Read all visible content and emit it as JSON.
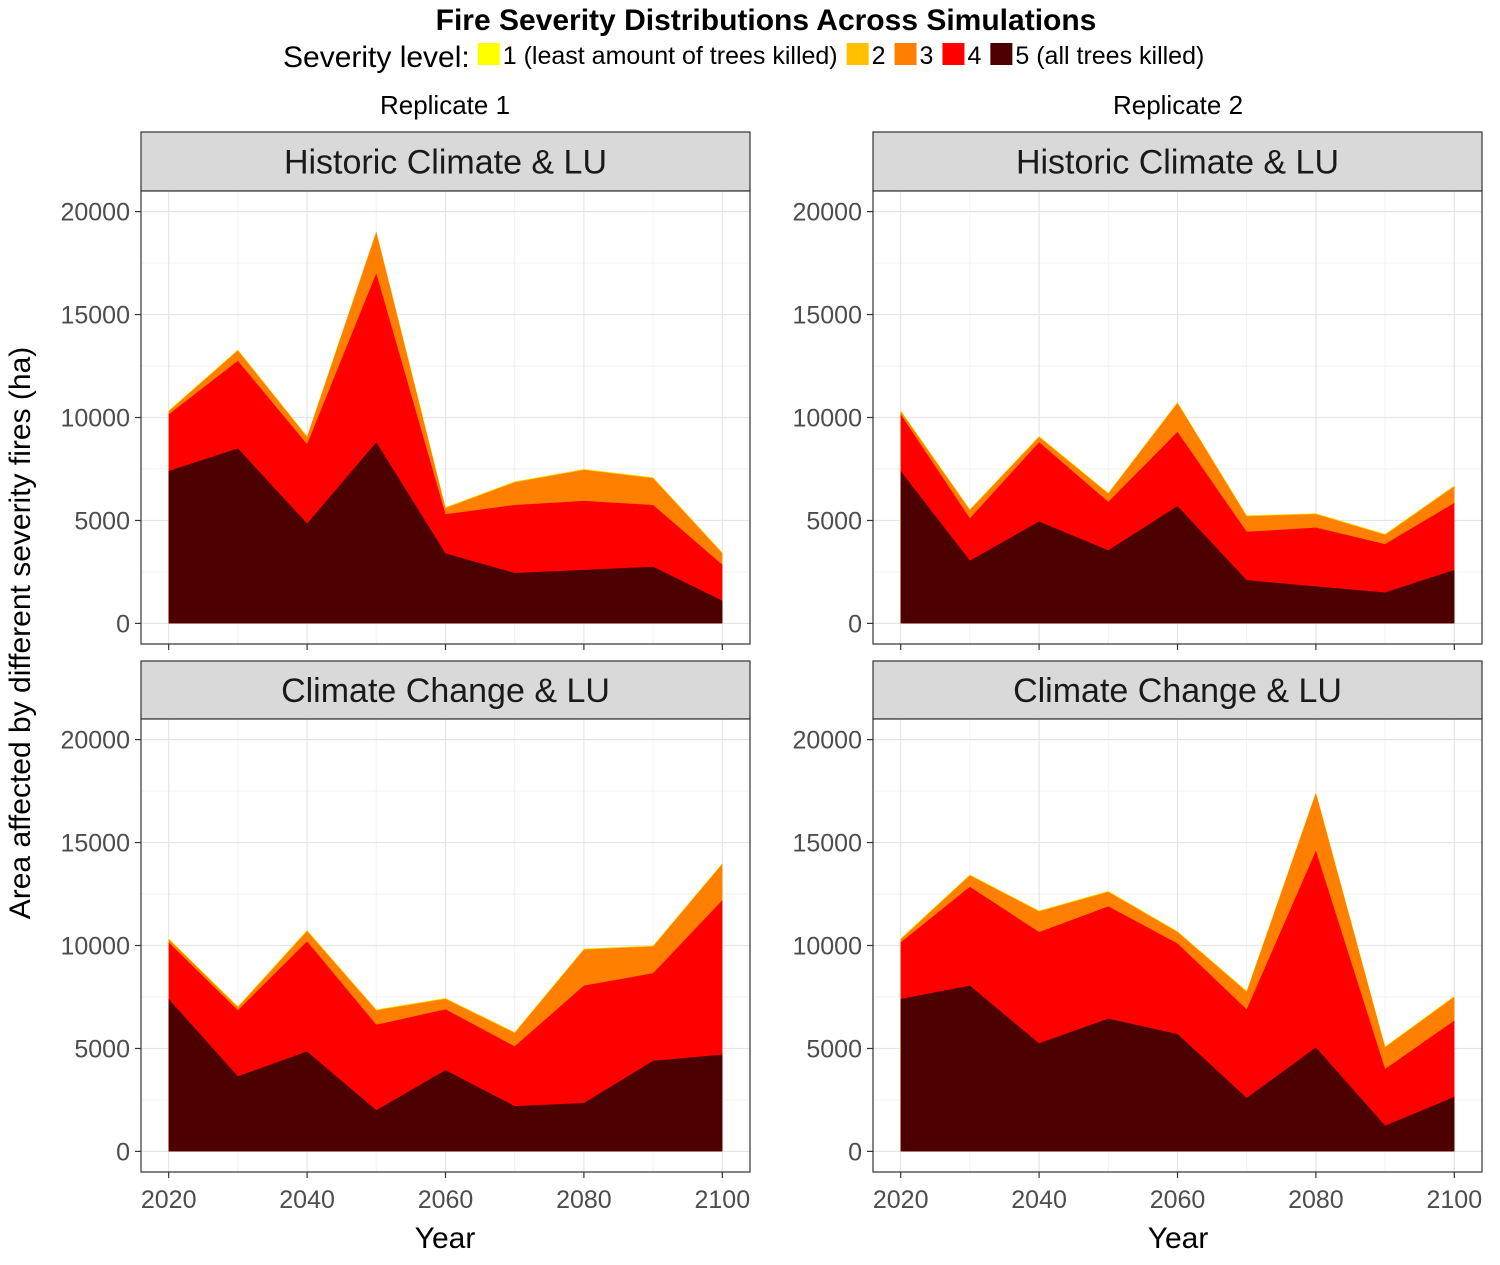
{
  "chart_data": {
    "type": "area",
    "title": "Fire Severity Distributions Across Simulations",
    "legend": {
      "title": "Severity level:",
      "position": "top",
      "entries": [
        {
          "label": "1 (least amount of trees killed)",
          "color": "#FFFF00"
        },
        {
          "label": "2",
          "color": "#FFC000"
        },
        {
          "label": "3",
          "color": "#FF8000"
        },
        {
          "label": "4",
          "color": "#FF0000"
        },
        {
          "label": "5 (all trees killed)",
          "color": "#4D0000"
        }
      ]
    },
    "xlabel": "Year",
    "ylabel": "Area affected by different severity fires (ha)",
    "x_ticks": [
      2020,
      2040,
      2060,
      2080,
      2100
    ],
    "y_ticks": [
      0,
      5000,
      10000,
      15000,
      20000
    ],
    "xlim": [
      2016,
      2104
    ],
    "ylim": [
      -1000,
      21000
    ],
    "grid": true,
    "columns": [
      "Replicate 1",
      "Replicate 2"
    ],
    "panels": [
      {
        "column": "Replicate 1",
        "facet": "Historic Climate & LU",
        "x": [
          2020,
          2030,
          2040,
          2050,
          2060,
          2070,
          2080,
          2090,
          2100
        ],
        "series": [
          {
            "name": "5 (all trees killed)",
            "values": [
              7400,
              8500,
              4850,
              8800,
              3400,
              2450,
              2600,
              2750,
              1100
            ]
          },
          {
            "name": "4",
            "values": [
              2750,
              4250,
              3850,
              8200,
              1900,
              3300,
              3350,
              3000,
              1750
            ]
          },
          {
            "name": "3",
            "values": [
              150,
              500,
              350,
              2000,
              300,
              1100,
              1500,
              1300,
              550
            ]
          },
          {
            "name": "2",
            "values": [
              30,
              30,
              30,
              30,
              30,
              30,
              30,
              30,
              30
            ]
          },
          {
            "name": "1 (least amount of trees killed)",
            "values": [
              20,
              20,
              20,
              20,
              20,
              20,
              20,
              20,
              20
            ]
          }
        ]
      },
      {
        "column": "Replicate 2",
        "facet": "Historic Climate & LU",
        "x": [
          2020,
          2030,
          2040,
          2050,
          2060,
          2070,
          2080,
          2090,
          2100
        ],
        "series": [
          {
            "name": "5 (all trees killed)",
            "values": [
              7400,
              3050,
              4950,
              3550,
              5700,
              2100,
              1800,
              1500,
              2600
            ]
          },
          {
            "name": "4",
            "values": [
              2750,
              2050,
              3850,
              2350,
              3600,
              2350,
              2850,
              2350,
              3250
            ]
          },
          {
            "name": "3",
            "values": [
              150,
              400,
              250,
              400,
              1400,
              750,
              650,
              450,
              800
            ]
          },
          {
            "name": "2",
            "values": [
              30,
              30,
              30,
              30,
              30,
              30,
              30,
              30,
              30
            ]
          },
          {
            "name": "1 (least amount of trees killed)",
            "values": [
              20,
              20,
              20,
              20,
              20,
              20,
              20,
              20,
              20
            ]
          }
        ]
      },
      {
        "column": "Replicate 1",
        "facet": "Climate Change & LU",
        "x": [
          2020,
          2030,
          2040,
          2050,
          2060,
          2070,
          2080,
          2090,
          2100
        ],
        "series": [
          {
            "name": "5 (all trees killed)",
            "values": [
              7400,
              3650,
              4850,
              2000,
              3950,
              2200,
              2350,
              4400,
              4700
            ]
          },
          {
            "name": "4",
            "values": [
              2750,
              3200,
              5350,
              4150,
              2950,
              2900,
              5700,
              4250,
              7500
            ]
          },
          {
            "name": "3",
            "values": [
              150,
              150,
              500,
              700,
              500,
              650,
              1750,
              1300,
              1750
            ]
          },
          {
            "name": "2",
            "values": [
              30,
              30,
              30,
              30,
              30,
              30,
              30,
              30,
              30
            ]
          },
          {
            "name": "1 (least amount of trees killed)",
            "values": [
              20,
              20,
              20,
              20,
              20,
              20,
              20,
              20,
              20
            ]
          }
        ]
      },
      {
        "column": "Replicate 2",
        "facet": "Climate Change & LU",
        "x": [
          2020,
          2030,
          2040,
          2050,
          2060,
          2070,
          2080,
          2090,
          2100
        ],
        "series": [
          {
            "name": "5 (all trees killed)",
            "values": [
              7400,
              8050,
              5250,
              6450,
              5700,
              2600,
              5050,
              1250,
              2650
            ]
          },
          {
            "name": "4",
            "values": [
              2750,
              4800,
              5400,
              5450,
              4400,
              4300,
              9550,
              2750,
              3700
            ]
          },
          {
            "name": "3",
            "values": [
              150,
              550,
              1000,
              700,
              550,
              850,
              2800,
              1050,
              1150
            ]
          },
          {
            "name": "2",
            "values": [
              30,
              30,
              30,
              30,
              30,
              30,
              30,
              30,
              30
            ]
          },
          {
            "name": "1 (least amount of trees killed)",
            "values": [
              20,
              20,
              20,
              20,
              20,
              20,
              20,
              20,
              20
            ]
          }
        ]
      }
    ]
  }
}
